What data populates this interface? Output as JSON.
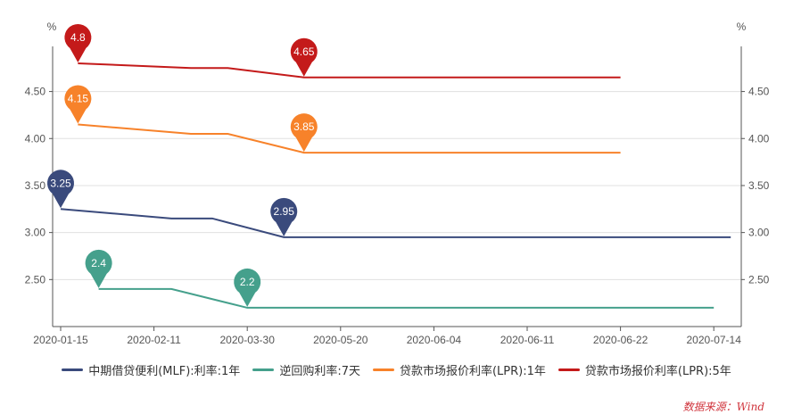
{
  "chart_data": {
    "type": "line",
    "y_unit_left": "%",
    "y_unit_right": "%",
    "ylim": [
      2.0,
      4.98
    ],
    "y_ticks": [
      "2.50",
      "3.00",
      "3.50",
      "4.00",
      "4.50"
    ],
    "x_ticks": [
      "2020-01-15",
      "2020-02-11",
      "2020-03-30",
      "2020-05-20",
      "2020-06-04",
      "2020-06-11",
      "2020-06-22",
      "2020-07-14"
    ],
    "grid": true,
    "legend_position": "bottom",
    "series": [
      {
        "name": "中期借贷便利(MLF):利率:1年",
        "color": "#3a4a7c",
        "points": [
          [
            "2020-01-15",
            3.25
          ],
          [
            "2020-02-20",
            3.15
          ],
          [
            "2020-03-12",
            3.15
          ],
          [
            "2020-04-19",
            2.95
          ],
          [
            "2020-07-18",
            2.95
          ]
        ],
        "pins": [
          0,
          3
        ]
      },
      {
        "name": "逆回购利率:7天",
        "color": "#45a08c",
        "points": [
          [
            "2020-01-26",
            2.4
          ],
          [
            "2020-02-20",
            2.4
          ],
          [
            "2020-03-30",
            2.2
          ],
          [
            "2020-07-14",
            2.2
          ]
        ],
        "pins": [
          0,
          2
        ]
      },
      {
        "name": "贷款市场报价利率(LPR):1年",
        "color": "#f7822a",
        "points": [
          [
            "2020-01-20",
            4.15
          ],
          [
            "2020-03-01",
            4.05
          ],
          [
            "2020-03-20",
            4.05
          ],
          [
            "2020-04-30",
            3.85
          ],
          [
            "2020-06-22",
            3.85
          ]
        ],
        "pins": [
          0,
          3
        ]
      },
      {
        "name": "贷款市场报价利率(LPR):5年",
        "color": "#c41a1a",
        "points": [
          [
            "2020-01-20",
            4.8
          ],
          [
            "2020-03-01",
            4.75
          ],
          [
            "2020-03-20",
            4.75
          ],
          [
            "2020-04-30",
            4.65
          ],
          [
            "2020-06-22",
            4.65
          ]
        ],
        "pins": [
          0,
          3
        ]
      }
    ]
  },
  "source": "数据来源：Wind"
}
